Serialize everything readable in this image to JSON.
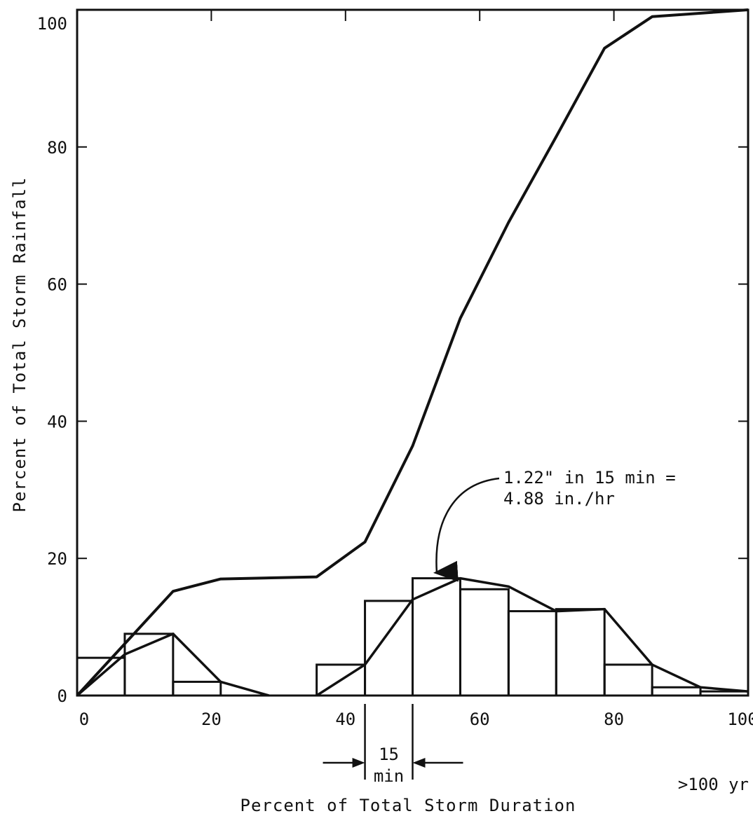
{
  "chart_data": {
    "type": "line",
    "title": "",
    "xlabel": "Percent of Total Storm Duration",
    "ylabel": "Percent of Total Storm Rainfall",
    "xlim": [
      0,
      100
    ],
    "ylim": [
      0,
      100
    ],
    "x_ticks": [
      "0",
      "20",
      "40",
      "60",
      "80",
      "100"
    ],
    "y_ticks": [
      "0",
      "20",
      "40",
      "60",
      "80",
      "100"
    ],
    "grid": false,
    "series": [
      {
        "kind": "cumulative-line",
        "x": [
          0,
          14.3,
          21.4,
          35.7,
          42.9,
          50,
          57.1,
          64.3,
          71.4,
          78.6,
          85.7,
          100
        ],
        "y": [
          0,
          15.2,
          17.0,
          17.3,
          22.4,
          36.4,
          55.0,
          69.0,
          81.5,
          94.4,
          99.0,
          100
        ]
      },
      {
        "kind": "histogram",
        "bins": [
          {
            "x0": 0,
            "x1": 7.1,
            "value": 5.5
          },
          {
            "x0": 7.1,
            "x1": 14.3,
            "value": 9.0
          },
          {
            "x0": 14.3,
            "x1": 21.4,
            "value": 2.0
          },
          {
            "x0": 21.4,
            "x1": 28.6,
            "value": 0
          },
          {
            "x0": 28.6,
            "x1": 35.7,
            "value": 0
          },
          {
            "x0": 35.7,
            "x1": 42.9,
            "value": 4.5
          },
          {
            "x0": 42.9,
            "x1": 50,
            "value": 13.8
          },
          {
            "x0": 50,
            "x1": 57.1,
            "value": 17.1
          },
          {
            "x0": 57.1,
            "x1": 64.3,
            "value": 15.5
          },
          {
            "x0": 64.3,
            "x1": 71.4,
            "value": 12.3
          },
          {
            "x0": 71.4,
            "x1": 78.6,
            "value": 12.6
          },
          {
            "x0": 78.6,
            "x1": 85.7,
            "value": 4.5
          },
          {
            "x0": 85.7,
            "x1": 92.9,
            "value": 1.2
          },
          {
            "x0": 92.9,
            "x1": 100,
            "value": 0.6
          }
        ]
      },
      {
        "kind": "smoothed-line",
        "segments": [
          {
            "x": [
              0,
              7.1,
              14.3,
              21.4,
              28.6
            ],
            "y": [
              0,
              6.0,
              9.0,
              2.0,
              0
            ]
          },
          {
            "x": [
              35.7,
              42.9,
              50,
              57.1,
              64.3,
              71.4,
              78.6,
              85.7,
              92.9,
              100
            ],
            "y": [
              0,
              4.5,
              14.0,
              17.1,
              15.9,
              12.3,
              12.6,
              4.5,
              1.2,
              0.6
            ]
          }
        ]
      }
    ],
    "annotations": {
      "peak_line1": "1.22\" in 15 min =",
      "peak_line2": "4.88 in./hr",
      "peak_target": {
        "x": 53.6,
        "y": 17.1
      },
      "interval_top": "15",
      "interval_bottom": "min",
      "interval_range": [
        42.9,
        50
      ],
      "corner_note": ">100 yr"
    }
  }
}
